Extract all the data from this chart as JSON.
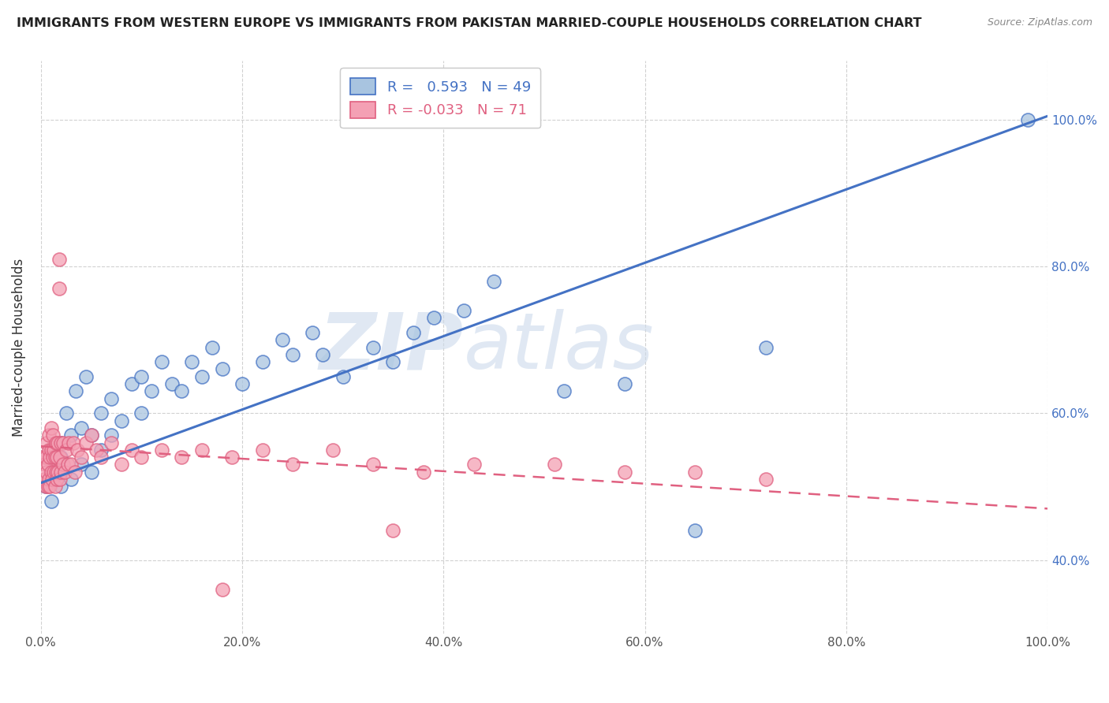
{
  "title": "IMMIGRANTS FROM WESTERN EUROPE VS IMMIGRANTS FROM PAKISTAN MARRIED-COUPLE HOUSEHOLDS CORRELATION CHART",
  "source": "Source: ZipAtlas.com",
  "ylabel": "Married-couple Households",
  "xmin": 0.0,
  "xmax": 1.0,
  "ymin": 0.3,
  "ymax": 1.08,
  "xtick_labels": [
    "0.0%",
    "20.0%",
    "40.0%",
    "60.0%",
    "80.0%",
    "100.0%"
  ],
  "xtick_vals": [
    0.0,
    0.2,
    0.4,
    0.6,
    0.8,
    1.0
  ],
  "ytick_labels": [
    "40.0%",
    "60.0%",
    "80.0%",
    "100.0%"
  ],
  "ytick_vals": [
    0.4,
    0.6,
    0.8,
    1.0
  ],
  "blue_R": 0.593,
  "blue_N": 49,
  "pink_R": -0.033,
  "pink_N": 71,
  "blue_color": "#a8c4e0",
  "pink_color": "#f4a0b4",
  "blue_line_color": "#4472c4",
  "pink_line_color": "#e06080",
  "watermark": "ZIPatlas",
  "blue_line_x0": 0.0,
  "blue_line_y0": 0.505,
  "blue_line_x1": 1.0,
  "blue_line_y1": 1.005,
  "pink_line_x0": 0.0,
  "pink_line_y0": 0.555,
  "pink_line_x1": 1.0,
  "pink_line_y1": 0.47,
  "blue_points_x": [
    0.005,
    0.01,
    0.01,
    0.02,
    0.02,
    0.02,
    0.025,
    0.03,
    0.03,
    0.035,
    0.04,
    0.04,
    0.045,
    0.05,
    0.05,
    0.06,
    0.06,
    0.07,
    0.07,
    0.08,
    0.09,
    0.1,
    0.1,
    0.11,
    0.12,
    0.13,
    0.14,
    0.15,
    0.16,
    0.17,
    0.18,
    0.2,
    0.22,
    0.24,
    0.25,
    0.27,
    0.28,
    0.3,
    0.33,
    0.35,
    0.37,
    0.39,
    0.42,
    0.45,
    0.52,
    0.58,
    0.65,
    0.72,
    0.98
  ],
  "blue_points_y": [
    0.5,
    0.48,
    0.52,
    0.54,
    0.5,
    0.56,
    0.6,
    0.51,
    0.57,
    0.63,
    0.53,
    0.58,
    0.65,
    0.52,
    0.57,
    0.55,
    0.6,
    0.57,
    0.62,
    0.59,
    0.64,
    0.6,
    0.65,
    0.63,
    0.67,
    0.64,
    0.63,
    0.67,
    0.65,
    0.69,
    0.66,
    0.64,
    0.67,
    0.7,
    0.68,
    0.71,
    0.68,
    0.65,
    0.69,
    0.67,
    0.71,
    0.73,
    0.74,
    0.78,
    0.63,
    0.64,
    0.44,
    0.69,
    1.0
  ],
  "pink_points_x": [
    0.002,
    0.003,
    0.004,
    0.005,
    0.005,
    0.006,
    0.006,
    0.007,
    0.007,
    0.008,
    0.008,
    0.008,
    0.009,
    0.009,
    0.01,
    0.01,
    0.01,
    0.011,
    0.012,
    0.012,
    0.013,
    0.013,
    0.014,
    0.014,
    0.015,
    0.015,
    0.016,
    0.016,
    0.017,
    0.017,
    0.018,
    0.018,
    0.019,
    0.019,
    0.02,
    0.02,
    0.022,
    0.022,
    0.024,
    0.025,
    0.027,
    0.028,
    0.03,
    0.032,
    0.034,
    0.036,
    0.04,
    0.045,
    0.05,
    0.055,
    0.06,
    0.07,
    0.08,
    0.09,
    0.1,
    0.12,
    0.14,
    0.16,
    0.19,
    0.22,
    0.25,
    0.29,
    0.33,
    0.38,
    0.43,
    0.51,
    0.58,
    0.65,
    0.72,
    0.35,
    0.18
  ],
  "pink_points_y": [
    0.54,
    0.51,
    0.53,
    0.5,
    0.54,
    0.52,
    0.56,
    0.5,
    0.53,
    0.51,
    0.55,
    0.57,
    0.5,
    0.54,
    0.52,
    0.55,
    0.58,
    0.51,
    0.54,
    0.57,
    0.52,
    0.55,
    0.5,
    0.54,
    0.52,
    0.56,
    0.51,
    0.54,
    0.52,
    0.56,
    0.77,
    0.81,
    0.51,
    0.54,
    0.52,
    0.56,
    0.53,
    0.56,
    0.52,
    0.55,
    0.53,
    0.56,
    0.53,
    0.56,
    0.52,
    0.55,
    0.54,
    0.56,
    0.57,
    0.55,
    0.54,
    0.56,
    0.53,
    0.55,
    0.54,
    0.55,
    0.54,
    0.55,
    0.54,
    0.55,
    0.53,
    0.55,
    0.53,
    0.52,
    0.53,
    0.53,
    0.52,
    0.52,
    0.51,
    0.44,
    0.36
  ]
}
